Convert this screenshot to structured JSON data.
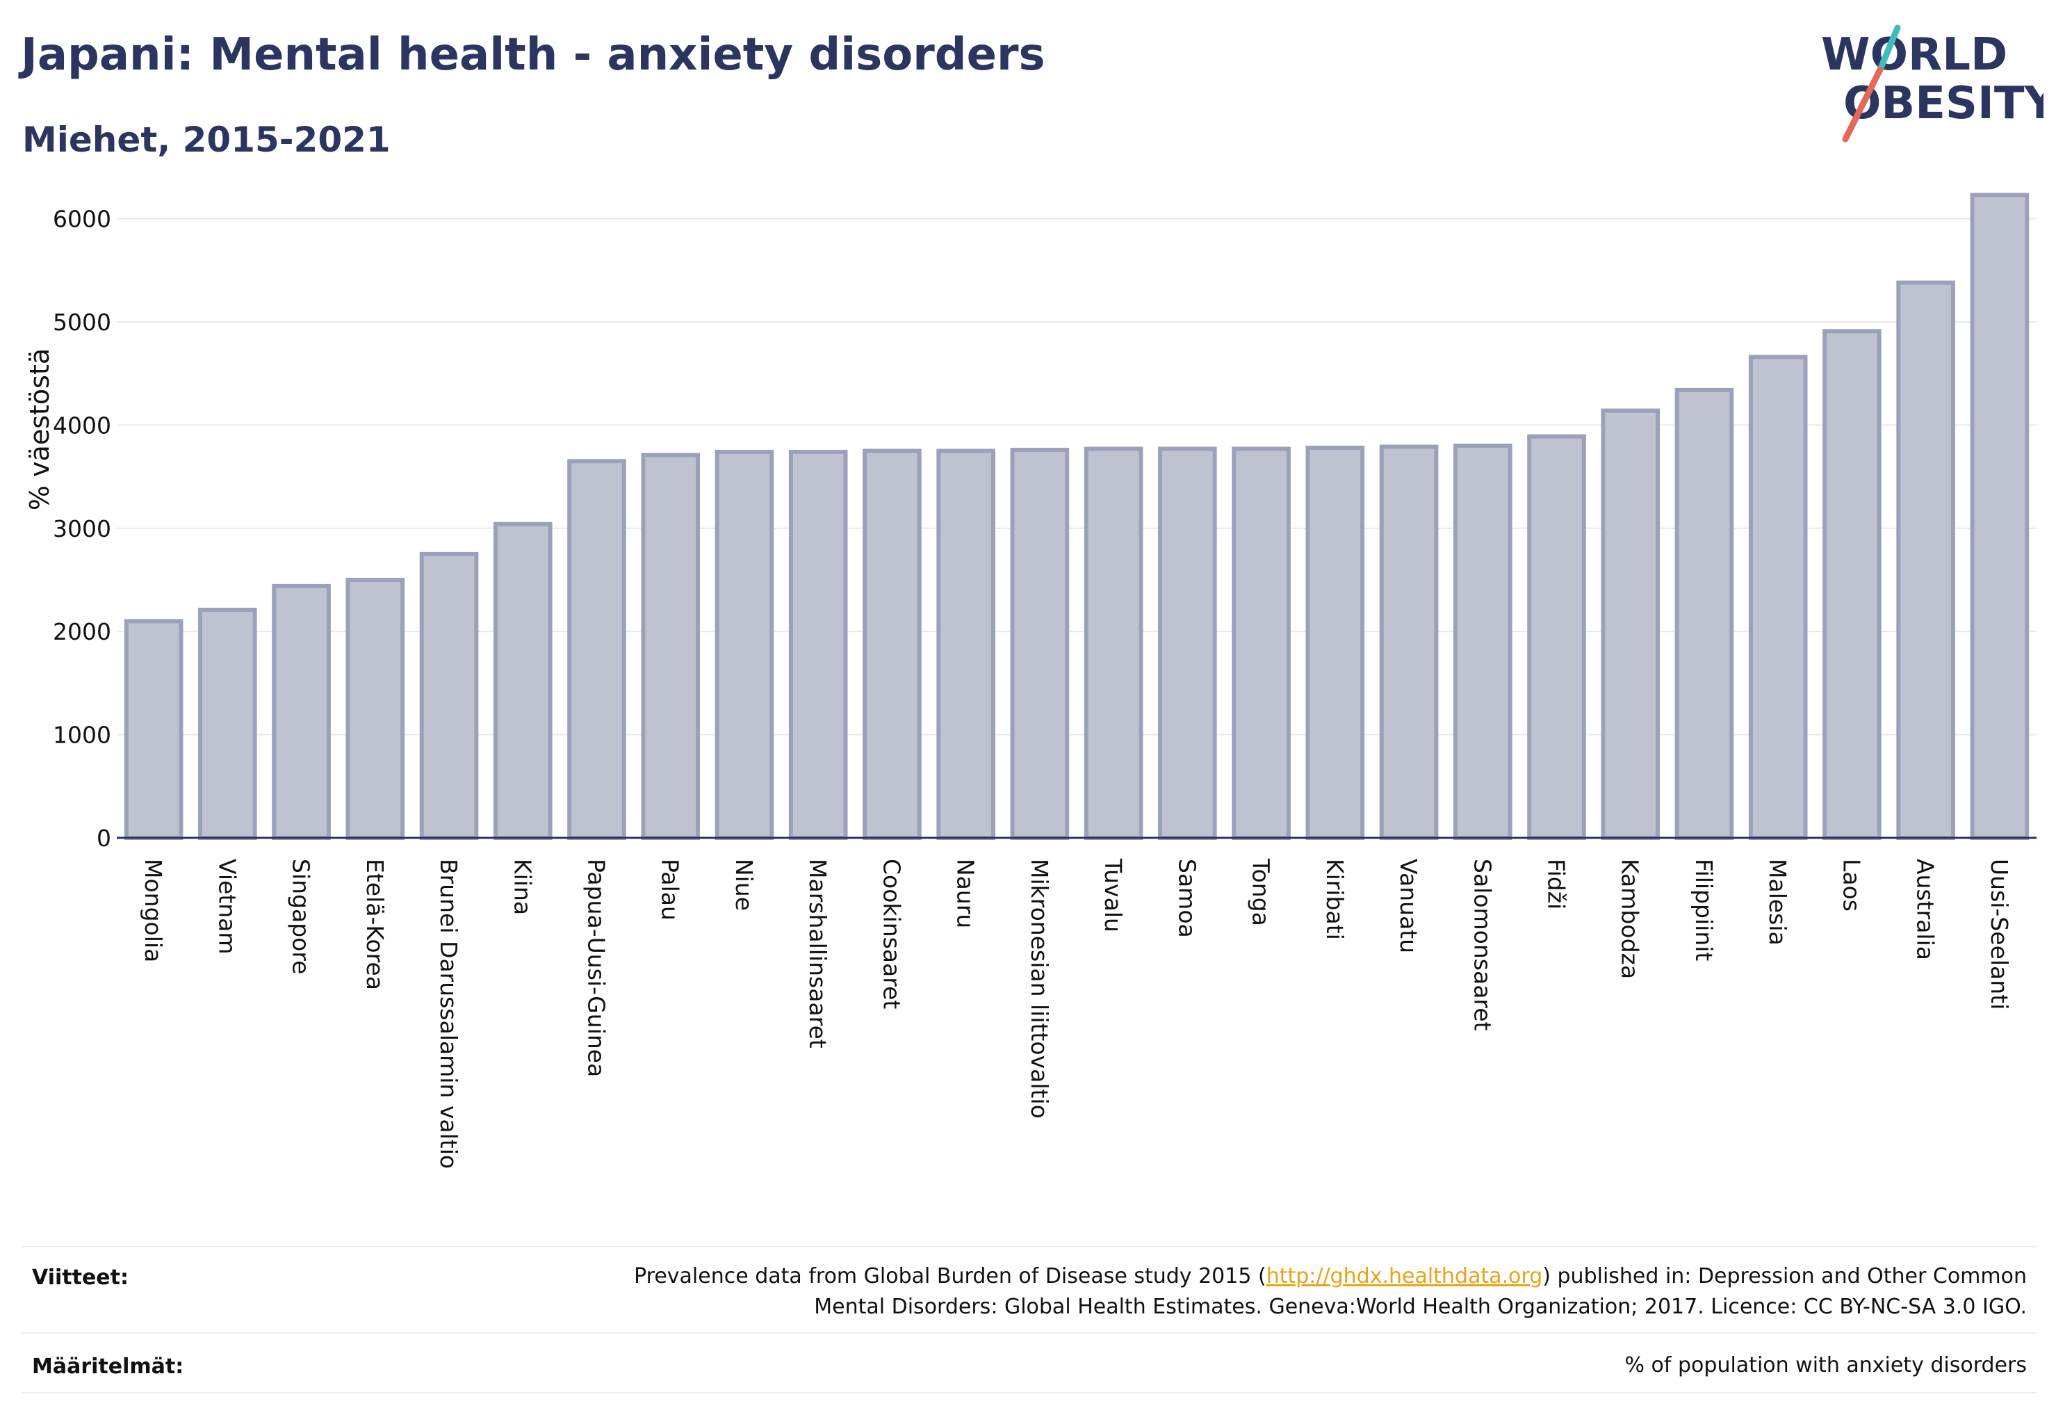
{
  "header": {
    "title": "Japani: Mental health - anxiety disorders",
    "subtitle": "Miehet, 2015-2021"
  },
  "logo": {
    "line1": "WORLD",
    "line2": "OBESITY",
    "accent": "#e5675a",
    "accent2": "#3fbdbd",
    "color": "#2b3560"
  },
  "footer": {
    "refs_label": "Viitteet:",
    "refs_before": "Prevalence data from Global Burden of Disease study 2015 (",
    "refs_link": "http://ghdx.healthdata.org",
    "refs_after": ") published in: Depression and Other Common",
    "refs_line2": "Mental Disorders: Global Health Estimates. Geneva:World Health Organization; 2017. Licence: CC BY-NC-SA 3.0 IGO.",
    "defs_label": "Määritelmät:",
    "defs_text": "% of population with anxiety disorders"
  },
  "chart_data": {
    "type": "bar",
    "ylabel": "% väestöstä",
    "ylim": [
      0,
      6300
    ],
    "yticks": [
      0,
      1000,
      2000,
      3000,
      4000,
      5000,
      6000
    ],
    "grid": true,
    "bar_fill": "#bfc3d1",
    "bar_stroke": "#9aa1b8",
    "categories": [
      "Mongolia",
      "Vietnam",
      "Singapore",
      "Etelä-Korea",
      "Brunei Darussalamin valtio",
      "Kiina",
      "Papua-Uusi-Guinea",
      "Palau",
      "Niue",
      "Marshallinsaaret",
      "Cookinsaaret",
      "Nauru",
      "Mikronesian liittovaltio",
      "Tuvalu",
      "Samoa",
      "Tonga",
      "Kiribati",
      "Vanuatu",
      "Salomonsaaret",
      "Fidži",
      "Kambodza",
      "Filippiinit",
      "Malesia",
      "Laos",
      "Australia",
      "Uusi-Seelanti"
    ],
    "values": [
      2100,
      2210,
      2440,
      2500,
      2750,
      3040,
      3650,
      3710,
      3740,
      3740,
      3750,
      3750,
      3760,
      3770,
      3770,
      3770,
      3780,
      3790,
      3800,
      3890,
      4140,
      4340,
      4660,
      4910,
      5380,
      6230
    ]
  }
}
